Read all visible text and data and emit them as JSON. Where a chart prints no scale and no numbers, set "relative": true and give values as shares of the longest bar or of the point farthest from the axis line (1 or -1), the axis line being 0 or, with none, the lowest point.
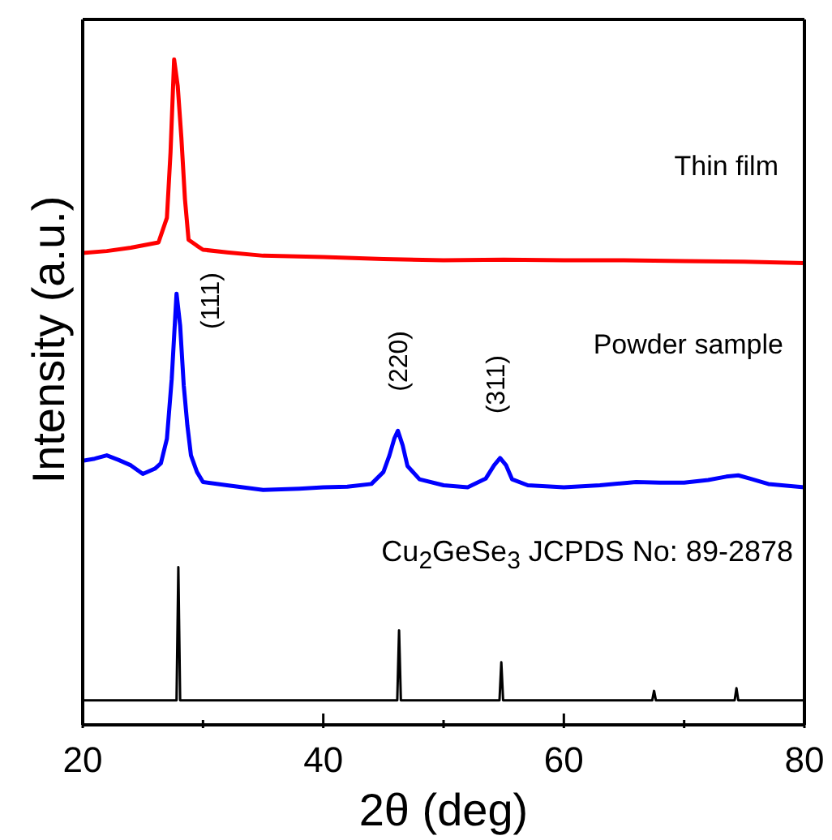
{
  "chart_data": {
    "type": "line",
    "relative": true,
    "xlabel": "2θ (deg)",
    "ylabel": "Intensity (a.u.)",
    "xlim": [
      20,
      80
    ],
    "xticks": [
      20,
      {
        "value": 30,
        "label": null
      },
      40,
      {
        "value": 50,
        "label": null
      },
      60,
      {
        "value": 70,
        "label": null
      },
      80
    ],
    "marker": "none",
    "line_style": "solid",
    "series": [
      {
        "color": "#ff0000",
        "x": [
          20,
          22,
          24,
          26.3,
          27,
          27.3,
          27.6,
          27.9,
          28.2,
          28.5,
          28.8,
          29.5,
          30,
          32,
          35,
          40,
          45,
          50,
          55,
          60,
          65,
          70,
          75,
          80
        ],
        "values": [
          0.709,
          0.712,
          0.717,
          0.725,
          0.762,
          0.86,
          1.0,
          0.96,
          0.883,
          0.79,
          0.729,
          0.72,
          0.714,
          0.71,
          0.705,
          0.703,
          0.7,
          0.698,
          0.699,
          0.698,
          0.698,
          0.697,
          0.696,
          0.694
        ]
      },
      {
        "color": "#0000ff",
        "x": [
          20,
          21,
          22,
          23,
          24,
          25,
          26,
          26.5,
          27,
          27.4,
          27.8,
          28.1,
          28.4,
          28.7,
          29,
          29.5,
          30,
          32,
          35,
          38,
          40,
          42,
          44,
          45,
          45.5,
          45.9,
          46.2,
          46.6,
          47,
          48,
          50,
          52,
          53.5,
          54.2,
          54.7,
          55.2,
          55.7,
          57,
          60,
          63,
          66,
          68,
          70,
          72,
          73.5,
          74.5,
          75.5,
          77,
          80
        ],
        "values": [
          0.397,
          0.4,
          0.405,
          0.398,
          0.39,
          0.377,
          0.385,
          0.393,
          0.43,
          0.52,
          0.648,
          0.6,
          0.51,
          0.45,
          0.405,
          0.38,
          0.365,
          0.36,
          0.353,
          0.355,
          0.357,
          0.358,
          0.362,
          0.38,
          0.405,
          0.43,
          0.442,
          0.42,
          0.389,
          0.369,
          0.36,
          0.357,
          0.37,
          0.39,
          0.401,
          0.39,
          0.369,
          0.36,
          0.357,
          0.36,
          0.365,
          0.364,
          0.364,
          0.368,
          0.373,
          0.375,
          0.37,
          0.362,
          0.357
        ]
      },
      {
        "color": "#000000",
        "x": [
          20,
          27.8,
          27.95,
          28.1,
          46.15,
          46.3,
          46.45,
          54.65,
          54.8,
          54.95,
          67.35,
          67.5,
          67.65,
          74.2,
          74.35,
          74.5,
          80
        ],
        "values": [
          0.037,
          0.037,
          0.237,
          0.037,
          0.037,
          0.142,
          0.037,
          0.037,
          0.094,
          0.037,
          0.037,
          0.051,
          0.037,
          0.037,
          0.055,
          0.037,
          0.037
        ]
      }
    ],
    "annotations": [
      "Thin film",
      "Powder sample",
      "Cu$_{2}$GeSe$_{3}$ JCPDS No: 89-2878",
      "(111)",
      "(220)",
      "(311)"
    ]
  }
}
